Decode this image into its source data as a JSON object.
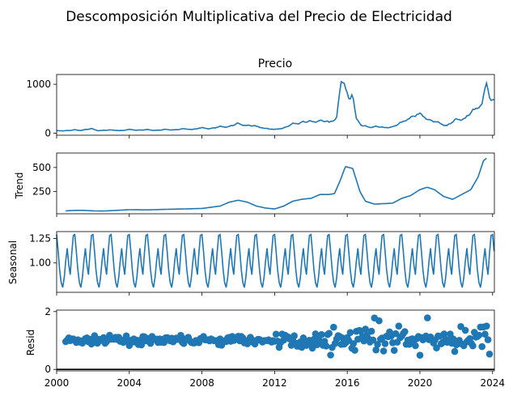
{
  "figure": {
    "suptitle": "Descomposición Multiplicativa del Precio de Electricidad",
    "line_color": "#1f77b4"
  },
  "chart_data": [
    {
      "type": "line",
      "title": "Precio",
      "ylabel": "",
      "xlim": [
        2000,
        2024.1
      ],
      "ylim": [
        -40,
        1200
      ],
      "yticks": [
        0,
        1000
      ],
      "anchors": [
        [
          2000.0,
          50
        ],
        [
          2000.6,
          55
        ],
        [
          2001.0,
          65
        ],
        [
          2001.3,
          60
        ],
        [
          2001.9,
          90
        ],
        [
          2002.3,
          55
        ],
        [
          2003.0,
          65
        ],
        [
          2003.6,
          55
        ],
        [
          2004.0,
          75
        ],
        [
          2004.5,
          65
        ],
        [
          2005.0,
          70
        ],
        [
          2005.6,
          60
        ],
        [
          2006.0,
          75
        ],
        [
          2006.6,
          70
        ],
        [
          2007.0,
          90
        ],
        [
          2007.5,
          80
        ],
        [
          2008.0,
          110
        ],
        [
          2008.4,
          95
        ],
        [
          2009.0,
          130
        ],
        [
          2009.5,
          140
        ],
        [
          2010.0,
          190
        ],
        [
          2010.5,
          160
        ],
        [
          2011.0,
          140
        ],
        [
          2011.5,
          100
        ],
        [
          2012.0,
          75
        ],
        [
          2012.5,
          110
        ],
        [
          2013.0,
          185
        ],
        [
          2013.5,
          230
        ],
        [
          2014.0,
          230
        ],
        [
          2014.5,
          260
        ],
        [
          2015.0,
          220
        ],
        [
          2015.4,
          300
        ],
        [
          2015.7,
          1150
        ],
        [
          2015.9,
          900
        ],
        [
          2016.1,
          650
        ],
        [
          2016.3,
          850
        ],
        [
          2016.5,
          300
        ],
        [
          2016.8,
          150
        ],
        [
          2017.2,
          125
        ],
        [
          2017.6,
          140
        ],
        [
          2018.0,
          110
        ],
        [
          2018.6,
          140
        ],
        [
          2019.0,
          220
        ],
        [
          2019.5,
          330
        ],
        [
          2020.0,
          390
        ],
        [
          2020.5,
          280
        ],
        [
          2021.0,
          210
        ],
        [
          2021.5,
          160
        ],
        [
          2022.0,
          270
        ],
        [
          2022.5,
          310
        ],
        [
          2023.0,
          470
        ],
        [
          2023.4,
          600
        ],
        [
          2023.7,
          1080
        ],
        [
          2023.85,
          650
        ],
        [
          2024.1,
          650
        ]
      ],
      "seasonal_amplitude": 0.18
    },
    {
      "type": "line",
      "title": "",
      "ylabel": "Trend",
      "xlim": [
        2000,
        2024.1
      ],
      "ylim": [
        20,
        650
      ],
      "yticks": [
        250,
        500
      ],
      "anchors": [
        [
          2000.5,
          50
        ],
        [
          2001.0,
          55
        ],
        [
          2001.5,
          55
        ],
        [
          2002.0,
          50
        ],
        [
          2002.5,
          48
        ],
        [
          2003.0,
          52
        ],
        [
          2004.0,
          62
        ],
        [
          2005.0,
          60
        ],
        [
          2006.0,
          66
        ],
        [
          2007.0,
          70
        ],
        [
          2008.0,
          75
        ],
        [
          2009.0,
          100
        ],
        [
          2009.5,
          140
        ],
        [
          2010.0,
          160
        ],
        [
          2010.5,
          140
        ],
        [
          2011.0,
          100
        ],
        [
          2011.5,
          80
        ],
        [
          2012.0,
          70
        ],
        [
          2012.5,
          100
        ],
        [
          2013.0,
          150
        ],
        [
          2013.5,
          170
        ],
        [
          2014.0,
          180
        ],
        [
          2014.5,
          220
        ],
        [
          2015.0,
          220
        ],
        [
          2015.3,
          230
        ],
        [
          2015.6,
          360
        ],
        [
          2015.9,
          510
        ],
        [
          2016.3,
          490
        ],
        [
          2016.7,
          250
        ],
        [
          2017.0,
          150
        ],
        [
          2017.5,
          120
        ],
        [
          2018.0,
          125
        ],
        [
          2018.5,
          130
        ],
        [
          2019.0,
          180
        ],
        [
          2019.5,
          210
        ],
        [
          2020.0,
          270
        ],
        [
          2020.4,
          295
        ],
        [
          2020.8,
          270
        ],
        [
          2021.3,
          200
        ],
        [
          2021.8,
          170
        ],
        [
          2022.3,
          220
        ],
        [
          2022.8,
          270
        ],
        [
          2023.2,
          400
        ],
        [
          2023.5,
          570
        ],
        [
          2023.7,
          600
        ]
      ]
    },
    {
      "type": "line",
      "title": "",
      "ylabel": "Seasonal",
      "xlim": [
        2000,
        2024.1
      ],
      "ylim": [
        0.7,
        1.32
      ],
      "yticks": [
        1.0,
        1.25
      ],
      "tick_decimals": 2,
      "monthly_profile": [
        1.29,
        1.12,
        0.93,
        0.8,
        0.75,
        0.85,
        1.02,
        1.15,
        0.98,
        0.88,
        1.1,
        1.28
      ],
      "start_year": 2000,
      "end_year": 2024.1
    },
    {
      "type": "scatter",
      "title": "",
      "ylabel": "Resid",
      "xlim": [
        2000,
        2024.1
      ],
      "ylim": [
        -0.05,
        2.05
      ],
      "yticks": [
        0,
        2
      ],
      "baseline": 0,
      "xticks": [
        2000,
        2004,
        2008,
        2012,
        2016,
        2020,
        2024
      ]
    }
  ]
}
